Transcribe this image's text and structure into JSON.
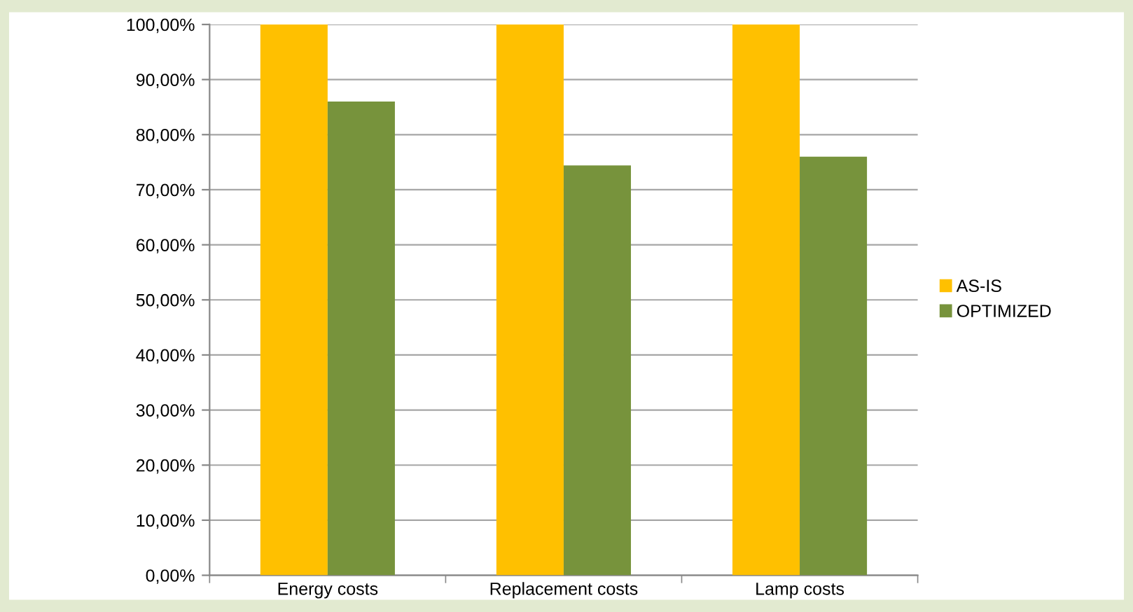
{
  "chart_data": {
    "type": "bar",
    "categories": [
      "Energy costs",
      "Replacement costs",
      "Lamp costs"
    ],
    "series": [
      {
        "name": "AS-IS",
        "color": "#ffc000",
        "values": [
          100,
          100,
          100
        ]
      },
      {
        "name": "OPTIMIZED",
        "color": "#77933c",
        "values": [
          86,
          74.4,
          76
        ]
      }
    ],
    "ylim": [
      0,
      100
    ],
    "yticks": [
      {
        "value": 0,
        "label": "0,00%"
      },
      {
        "value": 10,
        "label": "10,00%"
      },
      {
        "value": 20,
        "label": "20,00%"
      },
      {
        "value": 30,
        "label": "30,00%"
      },
      {
        "value": 40,
        "label": "40,00%"
      },
      {
        "value": 50,
        "label": "50,00%"
      },
      {
        "value": 60,
        "label": "60,00%"
      },
      {
        "value": 70,
        "label": "70,00%"
      },
      {
        "value": 80,
        "label": "80,00%"
      },
      {
        "value": 90,
        "label": "90,00%"
      },
      {
        "value": 100,
        "label": "100,00%"
      }
    ],
    "grid": "y",
    "legend": "right"
  }
}
